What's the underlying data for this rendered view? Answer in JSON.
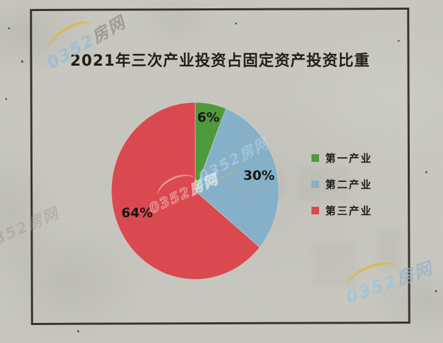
{
  "page": {
    "kind": "scanned newspaper chart clipping",
    "paper_color": "#c8c8c0",
    "frame_color": "#37332b"
  },
  "chart_data": {
    "type": "pie",
    "title": "2021年三次产业投资占固定资产投资比重",
    "labels": [
      "第一产业",
      "第二产业",
      "第三产业"
    ],
    "values": [
      6,
      30,
      64
    ],
    "value_labels": [
      "6%",
      "30%",
      "64%"
    ],
    "colors": [
      "#4f9a3c",
      "#86b1c9",
      "#db4950"
    ],
    "start_angle_deg": 0,
    "direction": "clockwise",
    "legend_position": "right",
    "value_label_color": "#17150f"
  },
  "watermark": {
    "text": "0352房网",
    "digits": "0352",
    "suffix": "房网",
    "swoosh_color": "#deb848"
  }
}
